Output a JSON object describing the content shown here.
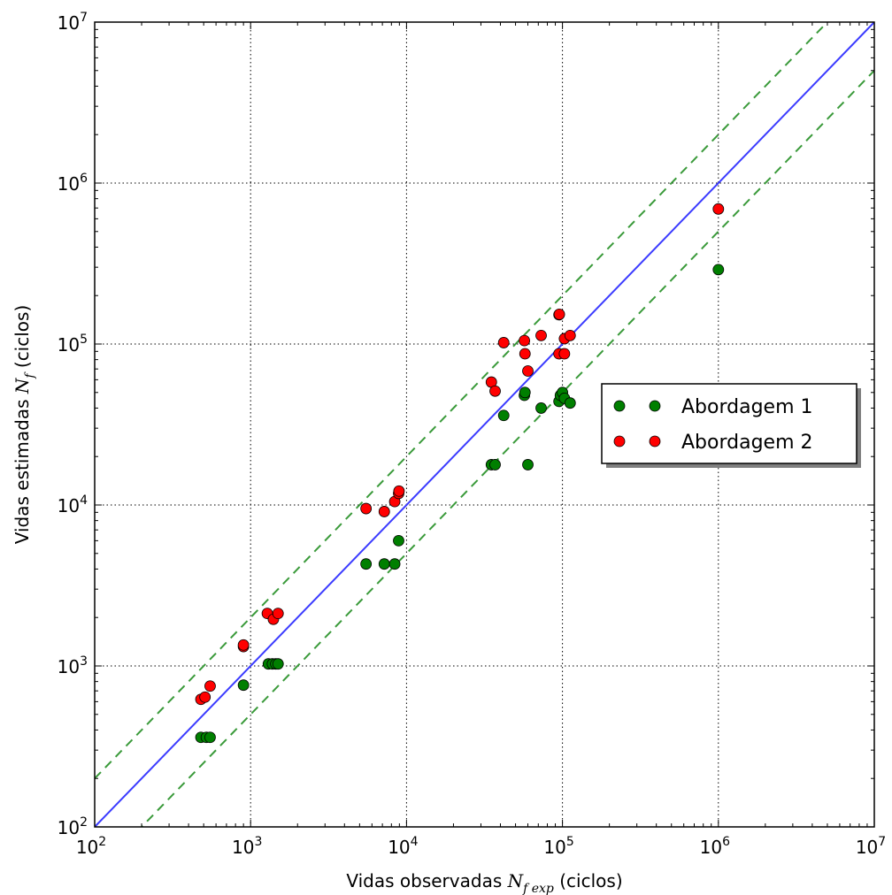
{
  "chart_data": {
    "type": "scatter",
    "title": "",
    "xlabel": {
      "prefix": "Vidas observadas ",
      "symbol": "N",
      "subscript": "f exp",
      "suffix": " (ciclos)"
    },
    "ylabel": {
      "prefix": "Vidas estimadas ",
      "symbol": "N",
      "subscript": "f",
      "suffix": " (ciclos)"
    },
    "xscale": "log",
    "yscale": "log",
    "xlim": [
      100,
      10000000
    ],
    "ylim": [
      100,
      10000000
    ],
    "ticks": [
      {
        "base": "10",
        "exp": "2"
      },
      {
        "base": "10",
        "exp": "3"
      },
      {
        "base": "10",
        "exp": "4"
      },
      {
        "base": "10",
        "exp": "5"
      },
      {
        "base": "10",
        "exp": "6"
      },
      {
        "base": "10",
        "exp": "7"
      }
    ],
    "grid": true,
    "legend_position": "right",
    "reference_lines": [
      {
        "kind": "equality",
        "factor": 1,
        "style": "solid",
        "color": "#3b3bff"
      },
      {
        "kind": "band-upper",
        "factor": 2,
        "style": "dashed",
        "color": "#3a9a3a"
      },
      {
        "kind": "band-lower",
        "factor": 0.5,
        "style": "dashed",
        "color": "#3a9a3a"
      }
    ],
    "series": [
      {
        "name": "Abordagem 1",
        "color": "#007f00",
        "points": [
          [
            480,
            360
          ],
          [
            520,
            360
          ],
          [
            550,
            360
          ],
          [
            900,
            760
          ],
          [
            1300,
            1030
          ],
          [
            1380,
            1030
          ],
          [
            1450,
            1030
          ],
          [
            1500,
            1030
          ],
          [
            5500,
            4300
          ],
          [
            7200,
            4300
          ],
          [
            8400,
            4300
          ],
          [
            8900,
            6000
          ],
          [
            35000,
            17800
          ],
          [
            37000,
            17800
          ],
          [
            60000,
            17800
          ],
          [
            42000,
            36000
          ],
          [
            73000,
            40000
          ],
          [
            57000,
            48000
          ],
          [
            57500,
            50000
          ],
          [
            95000,
            44000
          ],
          [
            97000,
            48000
          ],
          [
            100000,
            50000
          ],
          [
            103000,
            46000
          ],
          [
            112000,
            43000
          ],
          [
            1000000,
            290000
          ]
        ]
      },
      {
        "name": "Abordagem 2",
        "color": "#ff0000",
        "points": [
          [
            480,
            620
          ],
          [
            510,
            640
          ],
          [
            550,
            750
          ],
          [
            900,
            1320
          ],
          [
            900,
            1350
          ],
          [
            1280,
            2120
          ],
          [
            1400,
            1950
          ],
          [
            1500,
            2120
          ],
          [
            5500,
            9500
          ],
          [
            7200,
            9100
          ],
          [
            8400,
            10500
          ],
          [
            8900,
            11800
          ],
          [
            8950,
            12200
          ],
          [
            35000,
            58000
          ],
          [
            37000,
            51000
          ],
          [
            42000,
            102000
          ],
          [
            57000,
            105000
          ],
          [
            57500,
            87000
          ],
          [
            60000,
            68000
          ],
          [
            73000,
            113000
          ],
          [
            95000,
            152000
          ],
          [
            95500,
            153000
          ],
          [
            95000,
            87000
          ],
          [
            103000,
            87000
          ],
          [
            103000,
            108000
          ],
          [
            112000,
            113000
          ],
          [
            1000000,
            690000
          ]
        ]
      }
    ]
  }
}
